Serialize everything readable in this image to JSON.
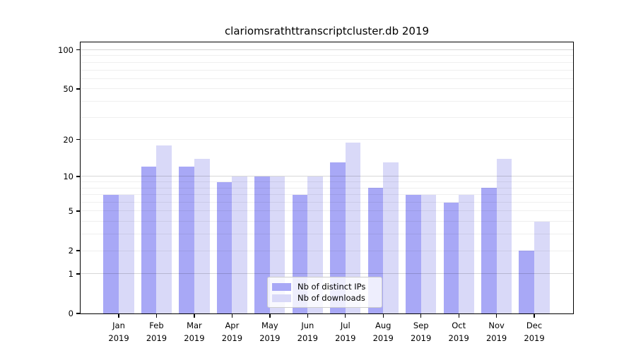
{
  "chart_data": {
    "type": "bar",
    "title": "clariomsrathttranscriptcluster.db 2019",
    "categories": [
      "Jan 2019",
      "Feb 2019",
      "Mar 2019",
      "Apr 2019",
      "May 2019",
      "Jun 2019",
      "Jul 2019",
      "Aug 2019",
      "Sep 2019",
      "Oct 2019",
      "Nov 2019",
      "Dec 2019"
    ],
    "months": [
      "Jan",
      "Feb",
      "Mar",
      "Apr",
      "May",
      "Jun",
      "Jul",
      "Aug",
      "Sep",
      "Oct",
      "Nov",
      "Dec"
    ],
    "year_label": "2019",
    "series": [
      {
        "name": "Nb of distinct IPs",
        "color": "#a8a8f6",
        "values": [
          7,
          12,
          12,
          9,
          10,
          7,
          13,
          8,
          7,
          6,
          8,
          2
        ]
      },
      {
        "name": "Nb of downloads",
        "color": "#d9d9f8",
        "values": [
          7,
          18,
          14,
          10,
          10,
          10,
          19,
          13,
          7,
          7,
          14,
          4
        ]
      }
    ],
    "xlabel": "",
    "ylabel": "",
    "y_scale": "log10(1+x)",
    "y_tick_values": [
      0,
      1,
      2,
      5,
      10,
      20,
      50,
      100
    ],
    "y_axis_max": 114,
    "grid": "on",
    "grid_major_values": [
      1,
      10,
      100
    ],
    "grid_minor_values": [
      2,
      3,
      4,
      5,
      6,
      7,
      8,
      9,
      20,
      30,
      40,
      50,
      60,
      70,
      80,
      90
    ],
    "legend_position": "lower center",
    "colors": {
      "axis": "#000000",
      "major_grid": "#d6d6d6",
      "minor_grid": "#efefef",
      "legend_border": "#cccccc"
    }
  }
}
